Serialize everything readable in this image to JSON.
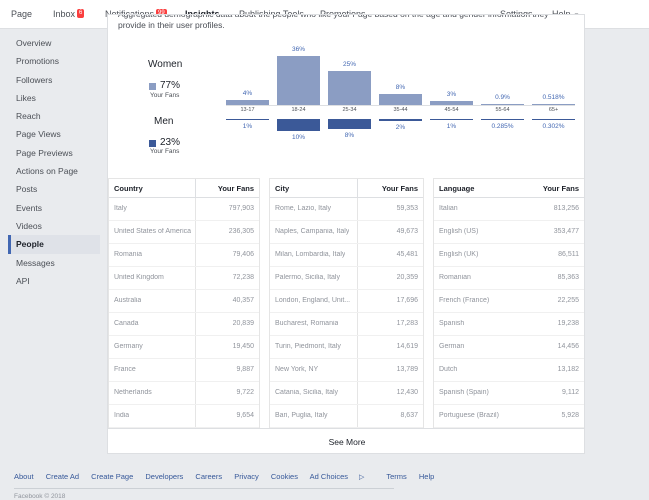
{
  "nav": {
    "page": "Page",
    "inbox": "Inbox",
    "inbox_badge": "6",
    "notifications": "Notifications",
    "notifications_badge": "99",
    "insights": "Insights",
    "publishing_tools": "Publishing Tools",
    "promotions": "Promotions",
    "settings": "Settings",
    "help": "Help"
  },
  "sidebar": {
    "items": [
      {
        "label": "Overview"
      },
      {
        "label": "Promotions"
      },
      {
        "label": "Followers"
      },
      {
        "label": "Likes"
      },
      {
        "label": "Reach"
      },
      {
        "label": "Page Views"
      },
      {
        "label": "Page Previews"
      },
      {
        "label": "Actions on Page"
      },
      {
        "label": "Posts"
      },
      {
        "label": "Events"
      },
      {
        "label": "Videos"
      },
      {
        "label": "People"
      },
      {
        "label": "Messages"
      },
      {
        "label": "API"
      }
    ],
    "active": "People"
  },
  "intro": {
    "text": "Aggregated demographic data about the people who like your Page based on the age and gender information they provide in their user profiles."
  },
  "gender": {
    "women_label": "Women",
    "women_pct": "77%",
    "women_sub": "Your Fans",
    "women_color": "#8b9dc3",
    "men_label": "Men",
    "men_pct": "23%",
    "men_sub": "Your Fans",
    "men_color": "#3b5998"
  },
  "chart_data": {
    "type": "bar",
    "categories": [
      "13-17",
      "18-24",
      "25-34",
      "35-44",
      "45-54",
      "55-64",
      "65+"
    ],
    "series": [
      {
        "name": "Women",
        "values": [
          4,
          36,
          25,
          8,
          3,
          0.9,
          0.518
        ],
        "labels": [
          "4%",
          "36%",
          "25%",
          "8%",
          "3%",
          "0.9%",
          "0.518%"
        ]
      },
      {
        "name": "Men",
        "values": [
          1,
          10,
          8,
          2,
          1,
          0.285,
          0.302
        ],
        "labels": [
          "1%",
          "10%",
          "8%",
          "2%",
          "1%",
          "0.285%",
          "0.302%"
        ]
      }
    ]
  },
  "tables": {
    "country": {
      "col_name": "Country",
      "col_value": "Your Fans",
      "rows": [
        {
          "name": "Italy",
          "value": "797,903"
        },
        {
          "name": "United States of America",
          "value": "236,305"
        },
        {
          "name": "Romania",
          "value": "79,406"
        },
        {
          "name": "United Kingdom",
          "value": "72,238"
        },
        {
          "name": "Australia",
          "value": "40,357"
        },
        {
          "name": "Canada",
          "value": "20,839"
        },
        {
          "name": "Germany",
          "value": "19,450"
        },
        {
          "name": "France",
          "value": "9,887"
        },
        {
          "name": "Netherlands",
          "value": "9,722"
        },
        {
          "name": "India",
          "value": "9,654"
        }
      ]
    },
    "city": {
      "col_name": "City",
      "col_value": "Your Fans",
      "rows": [
        {
          "name": "Rome, Lazio, Italy",
          "value": "59,353"
        },
        {
          "name": "Naples, Campania, Italy",
          "value": "49,673"
        },
        {
          "name": "Milan, Lombardia, Italy",
          "value": "45,481"
        },
        {
          "name": "Palermo, Sicilia, Italy",
          "value": "20,359"
        },
        {
          "name": "London, England, Unit...",
          "value": "17,696"
        },
        {
          "name": "Bucharest, Romania",
          "value": "17,283"
        },
        {
          "name": "Turin, Piedmont, Italy",
          "value": "14,619"
        },
        {
          "name": "New York, NY",
          "value": "13,789"
        },
        {
          "name": "Catania, Sicilia, Italy",
          "value": "12,430"
        },
        {
          "name": "Bari, Puglia, Italy",
          "value": "8,637"
        }
      ]
    },
    "language": {
      "col_name": "Language",
      "col_value": "Your Fans",
      "rows": [
        {
          "name": "Italian",
          "value": "813,256"
        },
        {
          "name": "English (US)",
          "value": "353,477"
        },
        {
          "name": "English (UK)",
          "value": "86,511"
        },
        {
          "name": "Romanian",
          "value": "85,363"
        },
        {
          "name": "French (France)",
          "value": "22,255"
        },
        {
          "name": "Spanish",
          "value": "19,238"
        },
        {
          "name": "German",
          "value": "14,456"
        },
        {
          "name": "Dutch",
          "value": "13,182"
        },
        {
          "name": "Spanish (Spain)",
          "value": "9,112"
        },
        {
          "name": "Portuguese (Brazil)",
          "value": "5,928"
        }
      ]
    }
  },
  "see_more": "See More",
  "footer": {
    "links": [
      "About",
      "Create Ad",
      "Create Page",
      "Developers",
      "Careers",
      "Privacy",
      "Cookies",
      "Ad Choices",
      "Terms",
      "Help"
    ],
    "copyright": "Facebook © 2018"
  }
}
